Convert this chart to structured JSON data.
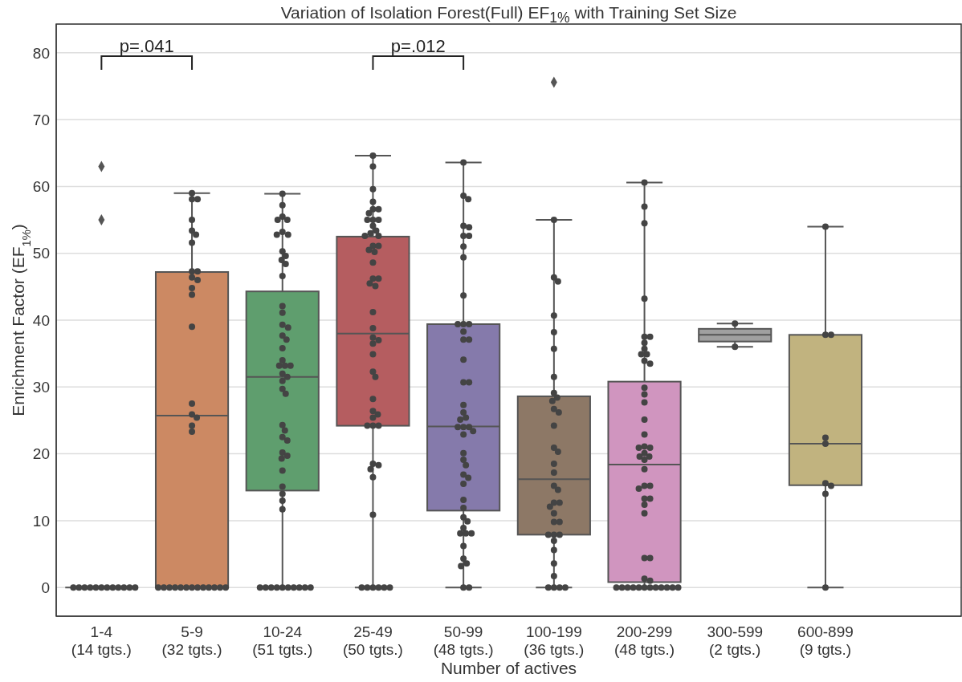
{
  "chart_data": {
    "type": "box",
    "title": "Variation of Isolation Forest(Full) EF$_{1%}$ with Training Set Size",
    "xlabel": "Number of actives",
    "ylabel": "Enrichment Factor (EF$_{1%}$)",
    "categories": [
      "1-4\n(14 tgts.)",
      "5-9\n(32 tgts.)",
      "10-24\n(51 tgts.)",
      "25-49\n(50 tgts.)",
      "50-99\n(48 tgts.)",
      "100-199\n(36 tgts.)",
      "200-299\n(48 tgts.)",
      "300-599\n(2 tgts.)",
      "600-899\n(9 tgts.)",
      null
    ],
    "colors": [
      null,
      "#cc8963",
      "#5f9e6e",
      "#b55d60",
      "#857aab",
      "#8d7866",
      "#d095bf",
      "#a0a0a0",
      "#c1b37f",
      null
    ],
    "boxes": [
      {
        "low": 0,
        "q1": 0,
        "median": 0,
        "q3": 0,
        "high": 0,
        "outliers": [
          55,
          63
        ]
      },
      {
        "low": 0,
        "q1": 0,
        "median": 25.7,
        "q3": 47.2,
        "high": 59
      },
      {
        "low": 0,
        "q1": 14.5,
        "median": 31.5,
        "q3": 44.3,
        "high": 58.9
      },
      {
        "low": 0,
        "q1": 24.2,
        "median": 38,
        "q3": 52.5,
        "high": 64.6
      },
      {
        "low": 0,
        "q1": 11.5,
        "median": 24.1,
        "q3": 39.4,
        "high": 63.6
      },
      {
        "low": 0,
        "q1": 7.9,
        "median": 16.2,
        "q3": 28.6,
        "high": 55,
        "outliers": [
          75.6
        ]
      },
      {
        "low": 0,
        "q1": 0.8,
        "median": 18.4,
        "q3": 30.8,
        "high": 60.6
      },
      {
        "low": 36,
        "q1": 36.8,
        "median": 37.8,
        "q3": 38.7,
        "high": 39.5
      },
      {
        "low": 0,
        "q1": 15.3,
        "median": 21.5,
        "q3": 37.8,
        "high": 54
      },
      null
    ],
    "ylim": [
      -4.3,
      84.3
    ],
    "yticks": [
      0,
      10,
      20,
      30,
      40,
      50,
      60,
      70,
      80
    ],
    "grid": "y",
    "annotations": [
      "p=.041",
      "p=.012"
    ],
    "series": [
      {
        "type": "scatter",
        "color": "#444444",
        "x": [
          "1-4\n(14 tgts.)",
          "1-4\n(14 tgts.)",
          "1-4\n(14 tgts.)",
          "1-4\n(14 tgts.)",
          "1-4\n(14 tgts.)",
          "1-4\n(14 tgts.)",
          "1-4\n(14 tgts.)",
          "1-4\n(14 tgts.)",
          "1-4\n(14 tgts.)",
          "1-4\n(14 tgts.)",
          "1-4\n(14 tgts.)",
          "1-4\n(14 tgts.)",
          "5-9\n(32 tgts.)",
          "5-9\n(32 tgts.)",
          "5-9\n(32 tgts.)",
          "5-9\n(32 tgts.)",
          "5-9\n(32 tgts.)",
          "5-9\n(32 tgts.)",
          "5-9\n(32 tgts.)",
          "5-9\n(32 tgts.)",
          "5-9\n(32 tgts.)",
          "5-9\n(32 tgts.)",
          "5-9\n(32 tgts.)",
          "5-9\n(32 tgts.)",
          "5-9\n(32 tgts.)",
          "5-9\n(32 tgts.)",
          "5-9\n(32 tgts.)",
          "5-9\n(32 tgts.)",
          "5-9\n(32 tgts.)",
          "5-9\n(32 tgts.)",
          "5-9\n(32 tgts.)",
          "5-9\n(32 tgts.)",
          "5-9\n(32 tgts.)",
          "5-9\n(32 tgts.)",
          "5-9\n(32 tgts.)",
          "5-9\n(32 tgts.)",
          "5-9\n(32 tgts.)",
          "5-9\n(32 tgts.)",
          "5-9\n(32 tgts.)",
          "5-9\n(32 tgts.)",
          "5-9\n(32 tgts.)",
          "5-9\n(32 tgts.)",
          "5-9\n(32 tgts.)",
          "5-9\n(32 tgts.)",
          "10-24\n(51 tgts.)",
          "10-24\n(51 tgts.)",
          "10-24\n(51 tgts.)",
          "10-24\n(51 tgts.)",
          "10-24\n(51 tgts.)",
          "10-24\n(51 tgts.)",
          "10-24\n(51 tgts.)",
          "10-24\n(51 tgts.)",
          "10-24\n(51 tgts.)",
          "10-24\n(51 tgts.)",
          "10-24\n(51 tgts.)",
          "10-24\n(51 tgts.)",
          "10-24\n(51 tgts.)",
          "10-24\n(51 tgts.)",
          "10-24\n(51 tgts.)",
          "10-24\n(51 tgts.)",
          "10-24\n(51 tgts.)",
          "10-24\n(51 tgts.)",
          "10-24\n(51 tgts.)",
          "10-24\n(51 tgts.)",
          "10-24\n(51 tgts.)",
          "10-24\n(51 tgts.)",
          "10-24\n(51 tgts.)",
          "10-24\n(51 tgts.)",
          "10-24\n(51 tgts.)",
          "10-24\n(51 tgts.)",
          "10-24\n(51 tgts.)",
          "10-24\n(51 tgts.)",
          "10-24\n(51 tgts.)",
          "10-24\n(51 tgts.)",
          "10-24\n(51 tgts.)",
          "10-24\n(51 tgts.)",
          "10-24\n(51 tgts.)",
          "10-24\n(51 tgts.)",
          "10-24\n(51 tgts.)",
          "10-24\n(51 tgts.)",
          "10-24\n(51 tgts.)",
          "10-24\n(51 tgts.)",
          "10-24\n(51 tgts.)",
          "10-24\n(51 tgts.)",
          "10-24\n(51 tgts.)",
          "10-24\n(51 tgts.)",
          "10-24\n(51 tgts.)",
          "10-24\n(51 tgts.)",
          "10-24\n(51 tgts.)",
          "10-24\n(51 tgts.)",
          "10-24\n(51 tgts.)",
          "10-24\n(51 tgts.)",
          "10-24\n(51 tgts.)",
          "10-24\n(51 tgts.)",
          "10-24\n(51 tgts.)",
          "25-49\n(50 tgts.)",
          "25-49\n(50 tgts.)",
          "25-49\n(50 tgts.)",
          "25-49\n(50 tgts.)",
          "25-49\n(50 tgts.)",
          "25-49\n(50 tgts.)",
          "25-49\n(50 tgts.)",
          "25-49\n(50 tgts.)",
          "25-49\n(50 tgts.)",
          "25-49\n(50 tgts.)",
          "25-49\n(50 tgts.)",
          "25-49\n(50 tgts.)",
          "25-49\n(50 tgts.)",
          "25-49\n(50 tgts.)",
          "25-49\n(50 tgts.)",
          "25-49\n(50 tgts.)",
          "25-49\n(50 tgts.)",
          "25-49\n(50 tgts.)",
          "25-49\n(50 tgts.)",
          "25-49\n(50 tgts.)",
          "25-49\n(50 tgts.)",
          "25-49\n(50 tgts.)",
          "25-49\n(50 tgts.)",
          "25-49\n(50 tgts.)",
          "25-49\n(50 tgts.)",
          "25-49\n(50 tgts.)",
          "25-49\n(50 tgts.)",
          "25-49\n(50 tgts.)",
          "25-49\n(50 tgts.)",
          "25-49\n(50 tgts.)",
          "25-49\n(50 tgts.)",
          "25-49\n(50 tgts.)",
          "25-49\n(50 tgts.)",
          "25-49\n(50 tgts.)",
          "25-49\n(50 tgts.)",
          "25-49\n(50 tgts.)",
          "25-49\n(50 tgts.)",
          "25-49\n(50 tgts.)",
          "25-49\n(50 tgts.)",
          "25-49\n(50 tgts.)",
          "25-49\n(50 tgts.)",
          "25-49\n(50 tgts.)",
          "25-49\n(50 tgts.)",
          "25-49\n(50 tgts.)",
          "25-49\n(50 tgts.)",
          "25-49\n(50 tgts.)",
          "25-49\n(50 tgts.)",
          "25-49\n(50 tgts.)",
          "25-49\n(50 tgts.)",
          "25-49\n(50 tgts.)",
          "50-99\n(48 tgts.)",
          "50-99\n(48 tgts.)",
          "50-99\n(48 tgts.)",
          "50-99\n(48 tgts.)",
          "50-99\n(48 tgts.)",
          "50-99\n(48 tgts.)",
          "50-99\n(48 tgts.)",
          "50-99\n(48 tgts.)",
          "50-99\n(48 tgts.)",
          "50-99\n(48 tgts.)",
          "50-99\n(48 tgts.)",
          "50-99\n(48 tgts.)",
          "50-99\n(48 tgts.)",
          "50-99\n(48 tgts.)",
          "50-99\n(48 tgts.)",
          "50-99\n(48 tgts.)",
          "50-99\n(48 tgts.)",
          "50-99\n(48 tgts.)",
          "50-99\n(48 tgts.)",
          "50-99\n(48 tgts.)",
          "50-99\n(48 tgts.)",
          "50-99\n(48 tgts.)",
          "50-99\n(48 tgts.)",
          "50-99\n(48 tgts.)",
          "50-99\n(48 tgts.)",
          "50-99\n(48 tgts.)",
          "50-99\n(48 tgts.)",
          "50-99\n(48 tgts.)",
          "50-99\n(48 tgts.)",
          "50-99\n(48 tgts.)",
          "50-99\n(48 tgts.)",
          "50-99\n(48 tgts.)",
          "50-99\n(48 tgts.)",
          "50-99\n(48 tgts.)",
          "50-99\n(48 tgts.)",
          "50-99\n(48 tgts.)",
          "50-99\n(48 tgts.)",
          "50-99\n(48 tgts.)",
          "50-99\n(48 tgts.)",
          "50-99\n(48 tgts.)",
          "50-99\n(48 tgts.)",
          "50-99\n(48 tgts.)",
          "50-99\n(48 tgts.)",
          "50-99\n(48 tgts.)",
          "50-99\n(48 tgts.)",
          "50-99\n(48 tgts.)",
          "50-99\n(48 tgts.)",
          "50-99\n(48 tgts.)",
          "100-199\n(36 tgts.)",
          "100-199\n(36 tgts.)",
          "100-199\n(36 tgts.)",
          "100-199\n(36 tgts.)",
          "100-199\n(36 tgts.)",
          "100-199\n(36 tgts.)",
          "100-199\n(36 tgts.)",
          "100-199\n(36 tgts.)",
          "100-199\n(36 tgts.)",
          "100-199\n(36 tgts.)",
          "100-199\n(36 tgts.)",
          "100-199\n(36 tgts.)",
          "100-199\n(36 tgts.)",
          "100-199\n(36 tgts.)",
          "100-199\n(36 tgts.)",
          "100-199\n(36 tgts.)",
          "100-199\n(36 tgts.)",
          "100-199\n(36 tgts.)",
          "100-199\n(36 tgts.)",
          "100-199\n(36 tgts.)",
          "100-199\n(36 tgts.)",
          "100-199\n(36 tgts.)",
          "100-199\n(36 tgts.)",
          "100-199\n(36 tgts.)",
          "100-199\n(36 tgts.)",
          "100-199\n(36 tgts.)",
          "100-199\n(36 tgts.)",
          "100-199\n(36 tgts.)",
          "100-199\n(36 tgts.)",
          "100-199\n(36 tgts.)",
          "100-199\n(36 tgts.)",
          "100-199\n(36 tgts.)",
          "100-199\n(36 tgts.)",
          "100-199\n(36 tgts.)",
          "100-199\n(36 tgts.)",
          "100-199\n(36 tgts.)",
          "200-299\n(48 tgts.)",
          "200-299\n(48 tgts.)",
          "200-299\n(48 tgts.)",
          "200-299\n(48 tgts.)",
          "200-299\n(48 tgts.)",
          "200-299\n(48 tgts.)",
          "200-299\n(48 tgts.)",
          "200-299\n(48 tgts.)",
          "200-299\n(48 tgts.)",
          "200-299\n(48 tgts.)",
          "200-299\n(48 tgts.)",
          "200-299\n(48 tgts.)",
          "200-299\n(48 tgts.)",
          "200-299\n(48 tgts.)",
          "200-299\n(48 tgts.)",
          "200-299\n(48 tgts.)",
          "200-299\n(48 tgts.)",
          "200-299\n(48 tgts.)",
          "200-299\n(48 tgts.)",
          "200-299\n(48 tgts.)",
          "200-299\n(48 tgts.)",
          "200-299\n(48 tgts.)",
          "200-299\n(48 tgts.)",
          "200-299\n(48 tgts.)",
          "200-299\n(48 tgts.)",
          "200-299\n(48 tgts.)",
          "200-299\n(48 tgts.)",
          "200-299\n(48 tgts.)",
          "200-299\n(48 tgts.)",
          "200-299\n(48 tgts.)",
          "200-299\n(48 tgts.)",
          "200-299\n(48 tgts.)",
          "200-299\n(48 tgts.)",
          "200-299\n(48 tgts.)",
          "200-299\n(48 tgts.)",
          "200-299\n(48 tgts.)",
          "200-299\n(48 tgts.)",
          "200-299\n(48 tgts.)",
          "200-299\n(48 tgts.)",
          "200-299\n(48 tgts.)",
          "200-299\n(48 tgts.)",
          "200-299\n(48 tgts.)",
          "200-299\n(48 tgts.)",
          "200-299\n(48 tgts.)",
          "200-299\n(48 tgts.)",
          "200-299\n(48 tgts.)",
          "200-299\n(48 tgts.)",
          "200-299\n(48 tgts.)",
          "300-599\n(2 tgts.)",
          "300-599\n(2 tgts.)",
          "600-899\n(9 tgts.)",
          "600-899\n(9 tgts.)",
          "600-899\n(9 tgts.)",
          "600-899\n(9 tgts.)",
          "600-899\n(9 tgts.)",
          "600-899\n(9 tgts.)",
          "600-899\n(9 tgts.)",
          "600-899\n(9 tgts.)",
          "600-899\n(9 tgts.)"
        ],
        "values": [
          0,
          0,
          0,
          0,
          0,
          0,
          0,
          0,
          0,
          0,
          0,
          0,
          0,
          0,
          0,
          0,
          0,
          0,
          0,
          0,
          0,
          0,
          0,
          0,
          0,
          59,
          58.1,
          58.1,
          55,
          53.4,
          52.8,
          51.6,
          47.3,
          47.3,
          46.4,
          46,
          44.8,
          43.8,
          39,
          27.5,
          25.9,
          25.4,
          24.2,
          23.3,
          0,
          0,
          0,
          0,
          0,
          0,
          0,
          0,
          0,
          0,
          58.9,
          57.2,
          55.5,
          55,
          55,
          53.2,
          52.8,
          52.8,
          50.3,
          49.6,
          49,
          48.4,
          46.6,
          42.1,
          41.1,
          39.3,
          38.9,
          37.7,
          37.1,
          35.8,
          34,
          33.2,
          33.2,
          33.2,
          32,
          31.5,
          30.9,
          29.7,
          29,
          24.3,
          23.5,
          22.5,
          22,
          20.2,
          19.7,
          19.3,
          17.5,
          15.1,
          14,
          13,
          11.7,
          0,
          0,
          0,
          0,
          0,
          0,
          64.6,
          63,
          59.6,
          57.7,
          56.6,
          56.6,
          56,
          55,
          55,
          55,
          54.1,
          53.4,
          53,
          52.6,
          52.6,
          51.1,
          51.1,
          50.5,
          50.2,
          48.6,
          46.2,
          46.2,
          45.5,
          45.1,
          41.2,
          38.8,
          37.4,
          37,
          36.5,
          34.9,
          32.3,
          31.5,
          28.2,
          26.4,
          25.9,
          25.4,
          24.2,
          24.2,
          24.2,
          18.5,
          18.3,
          17.7,
          16.5,
          10.9,
          0,
          0,
          63.6,
          58.6,
          58.1,
          54.1,
          53.9,
          52.6,
          52.6,
          51,
          49.4,
          43.7,
          39.4,
          39.4,
          39.4,
          38.3,
          37.1,
          37.1,
          34.1,
          30.7,
          30.7,
          27.3,
          26.2,
          25.4,
          25.1,
          24,
          24,
          24,
          23.4,
          22.9,
          20.1,
          19.1,
          18.3,
          16.9,
          16.4,
          15.5,
          13.1,
          11.9,
          10.5,
          9.9,
          8.9,
          8.1,
          8.1,
          8.1,
          6.2,
          4.3,
          3.6,
          3.2,
          0,
          0,
          0,
          0,
          55,
          46.4,
          45.8,
          40.7,
          38.2,
          35.7,
          31.5,
          29.1,
          28.4,
          27.9,
          26.7,
          26.2,
          24.2,
          20.9,
          20.3,
          18.5,
          17.2,
          15.2,
          14.6,
          12.7,
          12.7,
          12.1,
          11.1,
          9.8,
          9.8,
          7.9,
          7.9,
          7.9,
          7,
          5.6,
          3.6,
          1.7,
          0,
          0,
          0,
          0,
          0,
          0,
          0,
          0,
          0,
          0,
          0,
          0,
          60.6,
          57,
          54.5,
          43.2,
          37.5,
          37.5,
          36.6,
          35.7,
          34.9,
          34.9,
          33.9,
          33.5,
          29.9,
          28.9,
          27.7,
          25.1,
          22.9,
          21.1,
          20.9,
          20.9,
          20.1,
          19.6,
          19.6,
          19.1,
          17.7,
          15.2,
          15.2,
          14.8,
          13.3,
          13.3,
          12.4,
          11.1,
          4.4,
          4.4,
          1.3,
          1,
          39.5,
          36,
          54,
          37.8,
          37.8,
          22.4,
          21.5,
          15.6,
          15.2,
          14,
          0
        ]
      }
    ]
  }
}
